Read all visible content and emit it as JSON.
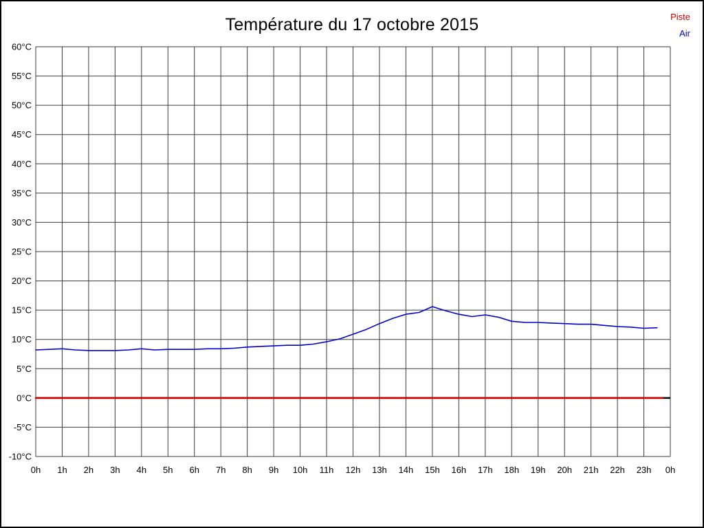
{
  "window": {
    "background": "#ffffff",
    "border_color": "#000000"
  },
  "header": {
    "title": "Température du 17 octobre 2015"
  },
  "legend": {
    "items": [
      {
        "label": "Piste",
        "color": "#cc0000"
      },
      {
        "label": "Air",
        "color": "#0000cc"
      }
    ]
  },
  "chart_data": {
    "type": "line",
    "title": "Température du 17 octobre 2015",
    "grid": true,
    "legend_position": "top-right",
    "xlim": [
      0,
      24
    ],
    "ylim": [
      -10,
      60
    ],
    "y_tick_step": 5,
    "y_tick_labels": [
      "60°C",
      "55°C",
      "50°C",
      "45°C",
      "40°C",
      "35°C",
      "30°C",
      "25°C",
      "20°C",
      "15°C",
      "10°C",
      "5°C",
      "0°C",
      "-5°C",
      "-10°C"
    ],
    "x_tick_labels": [
      "0h",
      "1h",
      "2h",
      "3h",
      "4h",
      "5h",
      "6h",
      "7h",
      "8h",
      "9h",
      "10h",
      "11h",
      "12h",
      "13h",
      "14h",
      "15h",
      "16h",
      "17h",
      "18h",
      "19h",
      "20h",
      "21h",
      "22h",
      "23h",
      "0h"
    ],
    "zero_axis": {
      "color": "#000000",
      "width": 2.5
    },
    "grid_color": "#3a3a3a",
    "series": [
      {
        "name": "Piste",
        "color": "#cc0000",
        "width": 2.5,
        "x": [
          0,
          23.7
        ],
        "values": [
          0,
          0
        ]
      },
      {
        "name": "Air",
        "color": "#0000cc",
        "width": 1.6,
        "x": [
          0,
          0.5,
          1,
          1.5,
          2,
          2.5,
          3,
          3.5,
          4,
          4.5,
          5,
          5.5,
          6,
          6.5,
          7,
          7.5,
          8,
          8.5,
          9,
          9.5,
          10,
          10.5,
          11,
          11.5,
          12,
          12.5,
          13,
          13.5,
          14,
          14.5,
          15,
          15.5,
          16,
          16.5,
          17,
          17.5,
          18,
          18.5,
          19,
          19.5,
          20,
          20.5,
          21,
          21.5,
          22,
          22.5,
          23,
          23.5
        ],
        "values": [
          8.2,
          8.3,
          8.4,
          8.2,
          8.1,
          8.1,
          8.1,
          8.2,
          8.4,
          8.2,
          8.3,
          8.3,
          8.3,
          8.4,
          8.4,
          8.5,
          8.7,
          8.8,
          8.9,
          9.0,
          9.0,
          9.2,
          9.6,
          10.1,
          10.9,
          11.7,
          12.7,
          13.6,
          14.3,
          14.6,
          15.6,
          14.9,
          14.3,
          13.9,
          14.2,
          13.8,
          13.1,
          12.9,
          12.9,
          12.8,
          12.7,
          12.6,
          12.6,
          12.4,
          12.2,
          12.1,
          11.9,
          12.0
        ]
      }
    ]
  }
}
